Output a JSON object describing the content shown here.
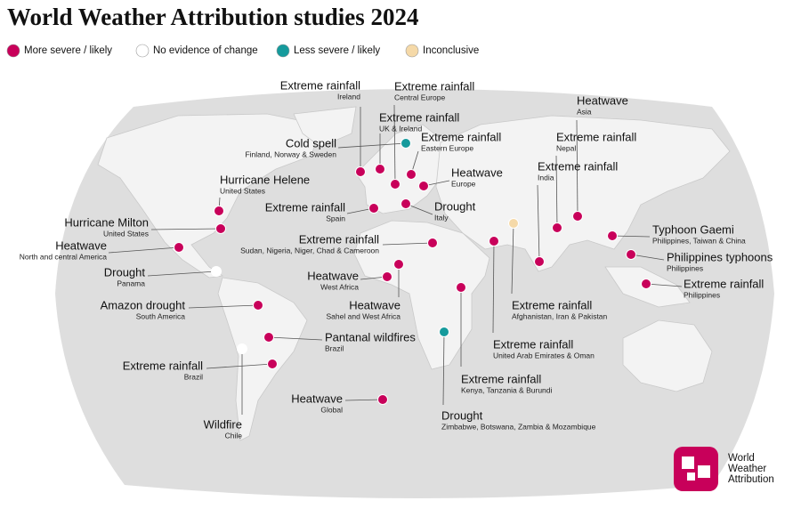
{
  "title": "World Weather Attribution studies 2024",
  "legend": [
    {
      "label": "More severe / likely",
      "color": "#c8005a"
    },
    {
      "label": "No evidence of change",
      "color": "#ffffff"
    },
    {
      "label": "Less severe / likely",
      "color": "#159a9c"
    },
    {
      "label": "Inconclusive",
      "color": "#f5d9a8"
    }
  ],
  "studies": [
    {
      "title": "Extreme rainfall",
      "subtitle": "Ireland",
      "category": 0
    },
    {
      "title": "Extreme rainfall",
      "subtitle": "Central Europe",
      "category": 0
    },
    {
      "title": "Extreme rainfall",
      "subtitle": "UK & Ireland",
      "category": 0
    },
    {
      "title": "Cold spell",
      "subtitle": "Finland, Norway & Sweden",
      "category": 2
    },
    {
      "title": "Extreme rainfall",
      "subtitle": "Eastern Europe",
      "category": 0
    },
    {
      "title": "Heatwave",
      "subtitle": "Europe",
      "category": 0
    },
    {
      "title": "Heatwave",
      "subtitle": "Asia",
      "category": 0
    },
    {
      "title": "Extreme rainfall",
      "subtitle": "Nepal",
      "category": 0
    },
    {
      "title": "Extreme rainfall",
      "subtitle": "India",
      "category": 0
    },
    {
      "title": "Hurricane Helene",
      "subtitle": "United States",
      "category": 0
    },
    {
      "title": "Extreme rainfall",
      "subtitle": "Spain",
      "category": 0
    },
    {
      "title": "Drought",
      "subtitle": "Italy",
      "category": 0
    },
    {
      "title": "Hurricane Milton",
      "subtitle": "United States",
      "category": 0
    },
    {
      "title": "Heatwave",
      "subtitle": "North and central America",
      "category": 0
    },
    {
      "title": "Typhoon Gaemi",
      "subtitle": "Philippines, Taiwan & China",
      "category": 0
    },
    {
      "title": "Extreme rainfall",
      "subtitle": "Sudan, Nigeria, Niger, Chad & Cameroon",
      "category": 0
    },
    {
      "title": "Philippines typhoons",
      "subtitle": "Philippines",
      "category": 0
    },
    {
      "title": "Drought",
      "subtitle": "Panama",
      "category": 1
    },
    {
      "title": "Heatwave",
      "subtitle": "West Africa",
      "category": 0
    },
    {
      "title": "Extreme rainfall",
      "subtitle": "Philippines",
      "category": 0
    },
    {
      "title": "Extreme rainfall",
      "subtitle": "Kenya, Tanzania & Burundi",
      "category": 0
    },
    {
      "title": "Heatwave",
      "subtitle": "Sahel and West Africa",
      "category": 0
    },
    {
      "title": "Extreme rainfall",
      "subtitle": "Afghanistan, Iran & Pakistan",
      "category": 3
    },
    {
      "title": "Amazon drought",
      "subtitle": "South America",
      "category": 0
    },
    {
      "title": "Pantanal wildfires",
      "subtitle": "Brazil",
      "category": 0
    },
    {
      "title": "Extreme rainfall",
      "subtitle": "United Arab Emirates & Oman",
      "category": 0
    },
    {
      "title": "Extreme rainfall",
      "subtitle": "Brazil",
      "category": 0
    },
    {
      "title": "Wildfire",
      "subtitle": "Chile",
      "category": 1
    },
    {
      "title": "Heatwave",
      "subtitle": "Global",
      "category": 0
    },
    {
      "title": "Drought",
      "subtitle": "Zimbabwe, Botswana, Zambia & Mozambique",
      "category": 2
    }
  ],
  "logo": [
    "World",
    "Weather",
    "Attribution"
  ]
}
